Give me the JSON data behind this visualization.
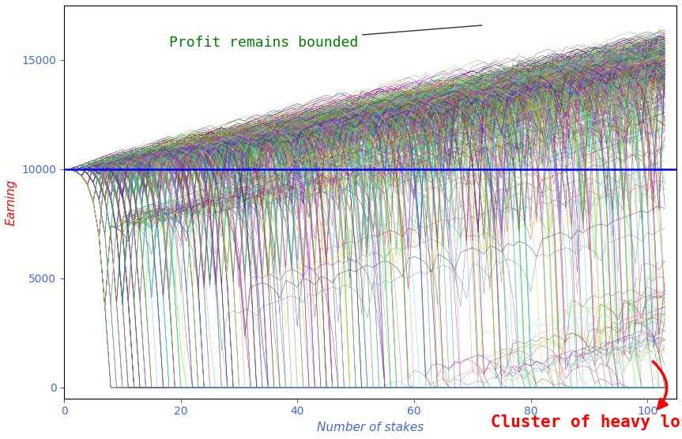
{
  "title": "",
  "xlabel": "Number of stakes",
  "ylabel": "Earning",
  "xlim": [
    0,
    105
  ],
  "ylim": [
    -500,
    17500
  ],
  "xticks": [
    0,
    20,
    40,
    60,
    80,
    100
  ],
  "yticks": [
    0,
    5000,
    10000,
    15000
  ],
  "n_scenarios": 1000,
  "n_steps": 103,
  "initial_capital": 10000,
  "min_stake": 100,
  "hline_value": 10000,
  "hline_color": "#0000FF",
  "hline_linewidth": 1.8,
  "annotation_text": "Profit remains bounded",
  "annotation_color": "#008000",
  "annotation_fontsize": 13,
  "cluster_text": "Cluster of heavy losses",
  "cluster_color": "#FF0000",
  "cluster_fontsize": 15,
  "xlabel_color": "#4169E1",
  "tick_color": "#4169E1",
  "ylabel_color": "#FF0000",
  "background_color": "#FFFFFF",
  "seed": 42
}
